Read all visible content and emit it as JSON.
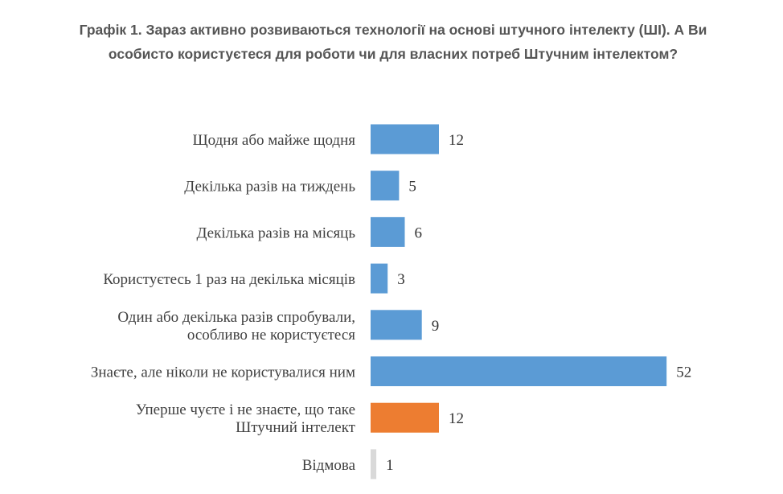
{
  "title": {
    "line1": "Графік 1. Зараз активно розвиваються технології на основі штучного інтелекту (ШІ). А Ви",
    "line2": "особисто користуєтеся для роботи чи для власних потреб Штучним інтелектом?"
  },
  "chart_data": {
    "type": "bar",
    "orientation": "horizontal",
    "categories": [
      [
        "Щодня або майже щодня"
      ],
      [
        "Декілька разів на тиждень"
      ],
      [
        "Декілька разів на місяць"
      ],
      [
        "Користуєтесь 1 раз на декілька місяців"
      ],
      [
        "Один або декілька разів спробували,",
        "особливо не користуєтеся"
      ],
      [
        "Знаєте, але ніколи не користувалися ним"
      ],
      [
        "Уперше чуєте і не знаєте, що таке",
        "Штучний інтелект"
      ],
      [
        "Відмова"
      ]
    ],
    "values": [
      12,
      5,
      6,
      3,
      9,
      52,
      12,
      1
    ],
    "colors": [
      "#5b9bd5",
      "#5b9bd5",
      "#5b9bd5",
      "#5b9bd5",
      "#5b9bd5",
      "#5b9bd5",
      "#ed7d31",
      "#d9d9d9"
    ],
    "label_color": "#404040",
    "value_color": "#333333",
    "xlim": [
      0,
      52
    ],
    "grid": false,
    "legend": false
  }
}
